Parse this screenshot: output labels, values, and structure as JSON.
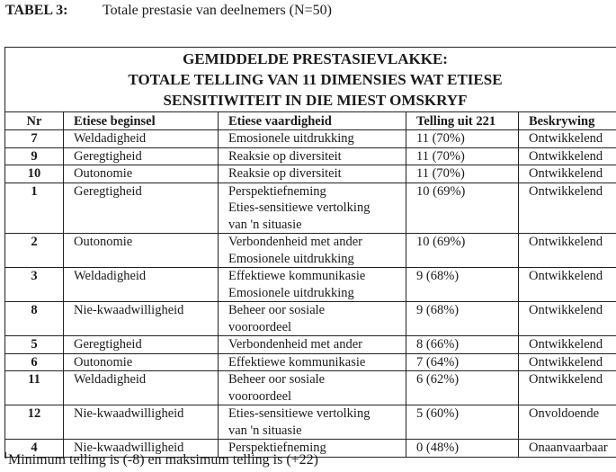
{
  "caption": {
    "label": "TABEL 3:",
    "text": "Totale prestasie van deelnemers (N=50)"
  },
  "table": {
    "title_lines": [
      "GEMIDDELDE PRESTASIEVLAKKE:",
      "TOTALE TELLING VAN 11 DIMENSIES WAT ETIESE",
      "SENSITIWITEIT IN DIE MIEST OMSKRYF"
    ],
    "headers": [
      "Nr",
      "Etiese beginsel",
      "Etiese vaardigheid",
      "Telling uit 221",
      "Beskrywing"
    ],
    "rows": [
      {
        "nr": "7",
        "beginsel": "Weldadigheid",
        "vaardigheid": [
          "Emosionele uitdrukking"
        ],
        "telling": "11 (70%)",
        "beskrywing": "Ontwikkelend"
      },
      {
        "nr": "9",
        "beginsel": "Geregtigheid",
        "vaardigheid": [
          "Reaksie op diversiteit"
        ],
        "telling": "11 (70%)",
        "beskrywing": "Ontwikkelend"
      },
      {
        "nr": "10",
        "beginsel": "Outonomie",
        "vaardigheid": [
          "Reaksie op diversiteit"
        ],
        "telling": "11 (70%)",
        "beskrywing": "Ontwikkelend"
      },
      {
        "nr": "1",
        "beginsel": "Geregtigheid",
        "vaardigheid": [
          "Perspektiefneming",
          "Eties-sensitiewe vertolking",
          "van 'n situasie"
        ],
        "telling": "10 (69%)",
        "beskrywing": "Ontwikkelend"
      },
      {
        "nr": "2",
        "beginsel": "Outonomie",
        "vaardigheid": [
          "Verbondenheid met ander",
          "Emosionele uitdrukking"
        ],
        "telling": "10 (69%)",
        "beskrywing": "Ontwikkelend"
      },
      {
        "nr": "3",
        "beginsel": "Weldadigheid",
        "vaardigheid": [
          "Effektiewe kommunikasie",
          "Emosionele uitdrukking"
        ],
        "telling": "9 (68%)",
        "beskrywing": "Ontwikkelend"
      },
      {
        "nr": "8",
        "beginsel": "Nie-kwaadwilligheid",
        "vaardigheid": [
          "Beheer oor sosiale",
          "vooroordeel"
        ],
        "telling": "9 (68%)",
        "beskrywing": "Ontwikkelend"
      },
      {
        "nr": "5",
        "beginsel": "Geregtigheid",
        "vaardigheid": [
          "Verbondenheid met ander"
        ],
        "telling": "8 (66%)",
        "beskrywing": "Ontwikkelend"
      },
      {
        "nr": "6",
        "beginsel": "Outonomie",
        "vaardigheid": [
          "Effektiewe kommunikasie"
        ],
        "telling": "7 (64%)",
        "beskrywing": "Ontwikkelend"
      },
      {
        "nr": "11",
        "beginsel": "Weldadigheid",
        "vaardigheid": [
          "Beheer oor sosiale",
          "vooroordeel"
        ],
        "telling": "6 (62%)",
        "beskrywing": "Ontwikkelend"
      },
      {
        "nr": "12",
        "beginsel": "Nie-kwaadwilligheid",
        "vaardigheid": [
          "Eties-sensitiewe vertolking",
          "van 'n situasie"
        ],
        "telling": "5 (60%)",
        "beskrywing": "Onvoldoende"
      },
      {
        "nr": "4",
        "beginsel": "Nie-kwaadwilligheid",
        "vaardigheid": [
          "Perspektiefneming"
        ],
        "telling": "0 (48%)",
        "beskrywing": "Onaanvaarbaar"
      }
    ]
  },
  "footnote": {
    "marker": "1",
    "text": "Minimum telling is (-8) en maksimum telling is (+22)"
  }
}
